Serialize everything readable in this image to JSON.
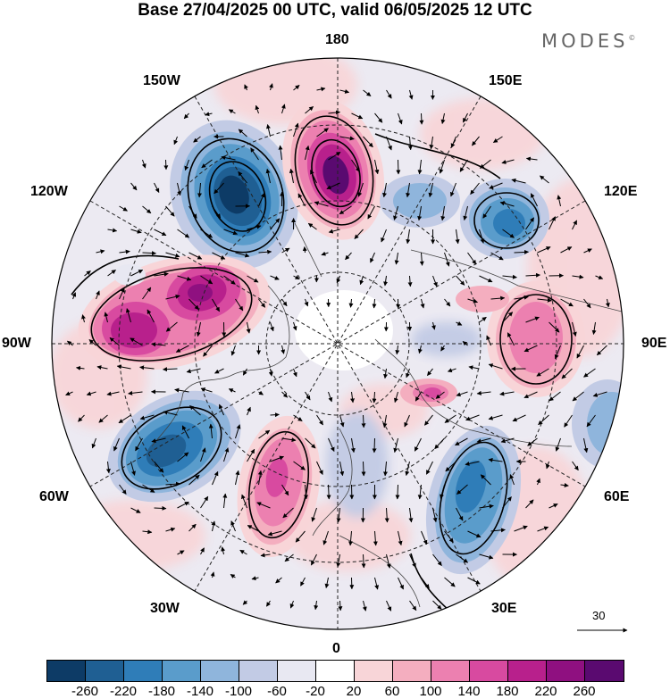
{
  "title": "Base 27/04/2025 00 UTC, valid 06/05/2025 12 UTC",
  "brand": {
    "name": "MODES",
    "mark": "©"
  },
  "longitude_labels": {
    "deg180": "180",
    "deg150W": "150W",
    "deg150E": "150E",
    "deg120W": "120W",
    "deg120E": "120E",
    "deg90W": "90W",
    "deg90E": "90E",
    "deg60W": "60W",
    "deg60E": "60E",
    "deg30W": "30W",
    "deg30E": "30E",
    "deg0": "0"
  },
  "reference_vector": {
    "value": "30"
  },
  "colorbar": {
    "colors": [
      "#0d3b66",
      "#1f5f93",
      "#2f7db8",
      "#5a9ccb",
      "#8fb5dc",
      "#c2cbe5",
      "#e8e8f2",
      "#ffffff",
      "#f8d5d8",
      "#f4aebf",
      "#ec80b0",
      "#d84aa0",
      "#b8208c",
      "#8f1080",
      "#5a0a70"
    ],
    "labels": [
      "-260",
      "-220",
      "-180",
      "-140",
      "-100",
      "-60",
      "-20",
      "20",
      "60",
      "100",
      "140",
      "180",
      "220",
      "260"
    ]
  },
  "map": {
    "projection": "north-polar-stereographic",
    "field_sign_legend": {
      "negative": "blue",
      "positive": "pink-purple"
    }
  }
}
